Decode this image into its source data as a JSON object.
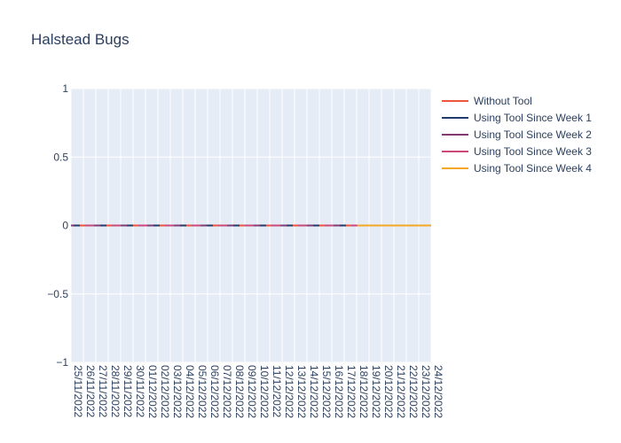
{
  "chart_data": {
    "type": "line",
    "title": "Halstead Bugs",
    "xlabel": "",
    "ylabel": "",
    "ylim": [
      -1,
      1
    ],
    "y_ticks": [
      "1",
      "0.5",
      "0",
      "−0.5",
      "−1"
    ],
    "y_tick_values": [
      1,
      0.5,
      0,
      -0.5,
      -1
    ],
    "grid": true,
    "legend_position": "top-right",
    "background_color": "#e5ecf6",
    "categories": [
      "25/11/2022",
      "26/11/2022",
      "27/11/2022",
      "28/11/2022",
      "29/11/2022",
      "30/11/2022",
      "01/12/2022",
      "02/12/2022",
      "03/12/2022",
      "04/12/2022",
      "05/12/2022",
      "06/12/2022",
      "07/12/2022",
      "08/12/2022",
      "09/12/2022",
      "10/12/2022",
      "11/12/2022",
      "12/12/2022",
      "13/12/2022",
      "14/12/2022",
      "15/12/2022",
      "16/12/2022",
      "17/12/2022",
      "18/12/2022",
      "19/12/2022",
      "20/12/2022",
      "21/12/2022",
      "22/12/2022",
      "23/12/2022",
      "24/12/2022"
    ],
    "series": [
      {
        "name": "Without Tool",
        "color": "#ef553b",
        "values": [
          0,
          0,
          0,
          0,
          0,
          0,
          0,
          0,
          0,
          0,
          0,
          0,
          0,
          0,
          0,
          0,
          0,
          0,
          0,
          0,
          0,
          0,
          0,
          0,
          0,
          0,
          0,
          0,
          0,
          0
        ]
      },
      {
        "name": "Using Tool Since Week 1",
        "color": "#1f3a6b",
        "values": [
          0,
          0,
          0,
          0,
          0,
          0,
          0,
          0,
          0,
          0,
          0,
          0,
          0,
          0,
          0,
          0,
          0,
          0,
          0,
          0,
          0,
          0,
          0,
          0,
          0,
          0,
          0,
          0,
          0,
          0
        ]
      },
      {
        "name": "Using Tool Since Week 2",
        "color": "#7e3d76",
        "values": [
          0,
          0,
          0,
          0,
          0,
          0,
          0,
          0,
          0,
          0,
          0,
          0,
          0,
          0,
          0,
          0,
          0,
          0,
          0,
          0,
          0,
          0,
          0,
          0,
          0,
          0,
          0,
          0,
          0,
          0
        ]
      },
      {
        "name": "Using Tool Since Week 3",
        "color": "#cc4778",
        "values": [
          0,
          0,
          0,
          0,
          0,
          0,
          0,
          0,
          0,
          0,
          0,
          0,
          0,
          0,
          0,
          0,
          0,
          0,
          0,
          0,
          0,
          0,
          0,
          0,
          0,
          0,
          0,
          0,
          0,
          0
        ]
      },
      {
        "name": "Using Tool Since Week 4",
        "color": "#f5a623",
        "values": [
          0,
          0,
          0,
          0,
          0,
          0,
          0,
          0,
          0,
          0,
          0,
          0,
          0,
          0,
          0,
          0,
          0,
          0,
          0,
          0,
          0,
          0,
          0,
          0,
          0,
          0,
          0,
          0,
          0,
          0
        ]
      }
    ]
  }
}
